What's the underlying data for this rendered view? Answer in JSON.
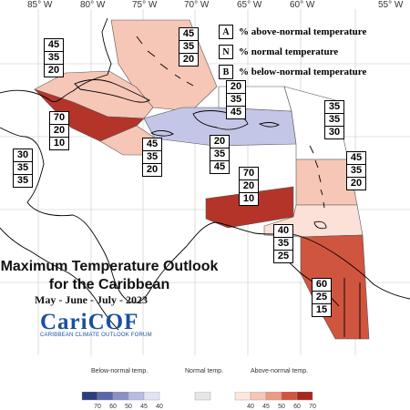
{
  "title": {
    "line1": "Maximum Temperature Outlook",
    "line2": "for the Caribbean",
    "period": "May - June - July - 2023"
  },
  "logo": {
    "name": "CariCOF",
    "subtitle": "CARIBBEAN CLIMATE OUTLOOK FORUM"
  },
  "longitude_labels": [
    "85° W",
    "80° W",
    "75° W",
    "70° W",
    "65° W",
    "60° W",
    "55° W"
  ],
  "legend": {
    "items": [
      {
        "key": "A",
        "text": "% above-normal temperature"
      },
      {
        "key": "N",
        "text": "% normal temperature"
      },
      {
        "key": "B",
        "text": "% below-normal temperature"
      }
    ]
  },
  "regions": [
    {
      "id": "bahamas",
      "A": "45",
      "N": "35",
      "B": "20",
      "color": "#f6c6b6"
    },
    {
      "id": "cuba",
      "A": "45",
      "N": "35",
      "B": "20",
      "color": "#f6c6b6"
    },
    {
      "id": "belize",
      "A": "30",
      "N": "35",
      "B": "35",
      "color": "#ffffff"
    },
    {
      "id": "cayman",
      "A": "70",
      "N": "20",
      "B": "10",
      "color": "#b5342a"
    },
    {
      "id": "jamaica",
      "A": "45",
      "N": "35",
      "B": "20",
      "color": "#f6c6b6"
    },
    {
      "id": "hispaniola-north",
      "A": "20",
      "N": "35",
      "B": "45",
      "color": "#c3c6e6"
    },
    {
      "id": "hispaniola-south",
      "A": "20",
      "N": "35",
      "B": "45",
      "color": "#c3c6e6"
    },
    {
      "id": "leeward",
      "A": "35",
      "N": "35",
      "B": "30",
      "color": "#ffffff"
    },
    {
      "id": "windward",
      "A": "45",
      "N": "35",
      "B": "20",
      "color": "#f6c6b6"
    },
    {
      "id": "abc-islands",
      "A": "70",
      "N": "20",
      "B": "10",
      "color": "#b5342a"
    },
    {
      "id": "trinidad",
      "A": "40",
      "N": "35",
      "B": "25",
      "color": "#fbe1d8"
    },
    {
      "id": "guianas",
      "A": "60",
      "N": "25",
      "B": "15",
      "color": "#d0553f"
    }
  ],
  "scale": {
    "below_label": "Below-normal temp.",
    "normal_label": "Normal temp.",
    "above_label": "Above-normal temp.",
    "below_ticks": [
      "70",
      "60",
      "50",
      "45",
      "40"
    ],
    "above_ticks": [
      "40",
      "45",
      "50",
      "60",
      "70"
    ],
    "below_colors": [
      "#2c3e7a",
      "#5a66a8",
      "#8a91c6",
      "#b8bcdf",
      "#e3e4f2"
    ],
    "normal_color": "#e6e6e6",
    "above_colors": [
      "#fbe7dd",
      "#f6c6b6",
      "#ec9a83",
      "#d0553f",
      "#a8261e"
    ]
  }
}
